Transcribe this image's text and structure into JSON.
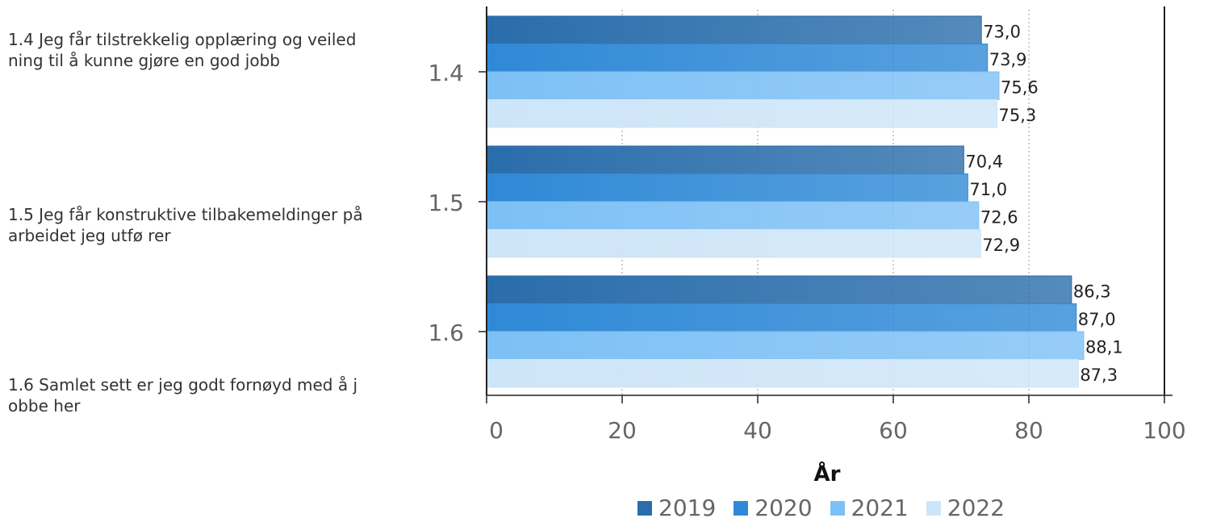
{
  "items": [
    {
      "text": "1.4 Jeg får tilstrekkelig opplæring og veiledning til å kunne gjøre en god jobb"
    },
    {
      "text": "1.5 Jeg får konstruktive tilbakemeldinger på arbeidet jeg utfø rer"
    },
    {
      "text": "1.6 Samlet sett er jeg godt fornøyd med å jobbe her"
    }
  ],
  "chart_data": {
    "type": "bar",
    "orientation": "horizontal",
    "categories": [
      "1.4",
      "1.5",
      "1.6"
    ],
    "series": [
      {
        "name": "2019",
        "values": [
          73.0,
          70.4,
          86.3
        ],
        "color": "#2a6dab"
      },
      {
        "name": "2020",
        "values": [
          73.9,
          71.0,
          87.0
        ],
        "color": "#2f89d6"
      },
      {
        "name": "2021",
        "values": [
          75.6,
          72.6,
          88.1
        ],
        "color": "#7dc0f5"
      },
      {
        "name": "2022",
        "values": [
          75.3,
          72.9,
          87.3
        ],
        "color": "#cde5f8"
      }
    ],
    "value_labels": [
      [
        "73,0",
        "70,4",
        "86,3"
      ],
      [
        "73,9",
        "71,0",
        "87,0"
      ],
      [
        "75,6",
        "72,6",
        "88,1"
      ],
      [
        "75,3",
        "72,9",
        "87,3"
      ]
    ],
    "xlim": [
      0,
      100
    ],
    "x_ticks": [
      0,
      20,
      40,
      60,
      80,
      100
    ],
    "xlabel": "År",
    "grid": "vertical dotted",
    "legend_position": "bottom"
  }
}
